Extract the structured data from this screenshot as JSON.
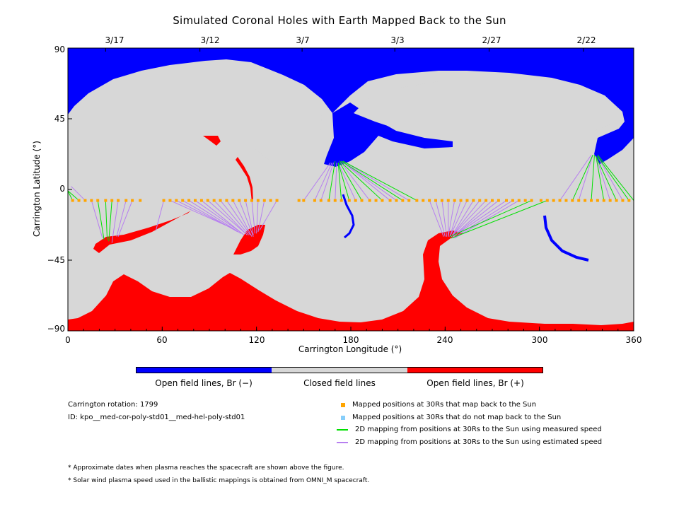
{
  "chart_data": {
    "type": "map",
    "title": "Simulated Coronal Holes with Earth Mapped Back to the Sun",
    "xlabel": "Carrington Longitude (°)",
    "ylabel": "Carrington Latitude (°)",
    "xlim": [
      0,
      360
    ],
    "ylim": [
      -90,
      90
    ],
    "x_ticks": [
      "0",
      "60",
      "120",
      "180",
      "240",
      "300",
      "360"
    ],
    "y_ticks": [
      "90",
      "45",
      "0",
      "−45",
      "−90"
    ],
    "date_ticks": [
      {
        "lon": 24,
        "label": "3/17"
      },
      {
        "lon": 84,
        "label": "3/12"
      },
      {
        "lon": 149,
        "label": "3/7"
      },
      {
        "lon": 208,
        "label": "3/3"
      },
      {
        "lon": 268,
        "label": "2/27"
      },
      {
        "lon": 328,
        "label": "2/22"
      }
    ],
    "spacecraft_latitude": -7,
    "mapped_positions_longitudes": [
      3,
      7,
      11,
      15,
      19,
      24,
      28,
      32,
      37,
      41,
      46,
      61,
      65,
      69,
      73,
      77,
      81,
      85,
      89,
      93,
      97,
      101,
      105,
      109,
      113,
      117,
      121,
      125,
      129,
      133,
      147,
      150,
      157,
      161,
      166,
      170,
      174,
      179,
      183,
      187,
      192,
      196,
      200,
      205,
      209,
      213,
      217,
      222,
      226,
      230,
      234,
      238,
      242,
      246,
      250,
      254,
      258,
      262,
      266,
      270,
      274,
      279,
      283,
      287,
      291,
      295,
      301,
      305,
      309,
      313,
      317,
      321,
      325,
      329,
      333,
      337,
      341,
      345,
      349,
      353,
      357
    ],
    "measured_speed_mappings": [
      {
        "from_lon": 3,
        "to": [
          -1,
          1
        ]
      },
      {
        "from_lon": 7,
        "to": [
          -1,
          0
        ]
      },
      {
        "from_lon": 19,
        "to": [
          23,
          -32
        ]
      },
      {
        "from_lon": 24,
        "to": [
          25,
          -32
        ]
      },
      {
        "from_lon": 28,
        "to": [
          26,
          -33
        ]
      },
      {
        "from_lon": 166,
        "to": [
          170,
          18
        ]
      },
      {
        "from_lon": 174,
        "to": [
          172,
          17
        ]
      },
      {
        "from_lon": 179,
        "to": [
          172,
          17
        ]
      },
      {
        "from_lon": 187,
        "to": [
          173,
          17
        ]
      },
      {
        "from_lon": 200,
        "to": [
          173,
          18
        ]
      },
      {
        "from_lon": 213,
        "to": [
          174,
          18
        ]
      },
      {
        "from_lon": 222,
        "to": [
          175,
          18
        ]
      },
      {
        "from_lon": 295,
        "to": [
          243,
          -30
        ]
      },
      {
        "from_lon": 305,
        "to": [
          244,
          -31
        ]
      },
      {
        "from_lon": 321,
        "to": [
          334,
          22
        ]
      },
      {
        "from_lon": 333,
        "to": [
          335,
          22
        ]
      },
      {
        "from_lon": 341,
        "to": [
          336,
          21
        ]
      },
      {
        "from_lon": 349,
        "to": [
          336,
          21
        ]
      },
      {
        "from_lon": 357,
        "to": [
          337,
          21
        ]
      },
      {
        "from_lon": 360,
        "to": [
          337,
          22
        ]
      }
    ],
    "estimated_speed_mappings": [
      {
        "from_lon": 11,
        "to": [
          2,
          2
        ]
      },
      {
        "from_lon": 15,
        "to": [
          22,
          -31
        ]
      },
      {
        "from_lon": 32,
        "to": [
          28,
          -34
        ]
      },
      {
        "from_lon": 37,
        "to": [
          31,
          -30
        ]
      },
      {
        "from_lon": 41,
        "to": [
          32,
          -30
        ]
      },
      {
        "from_lon": 61,
        "to": [
          56,
          -26
        ]
      },
      {
        "from_lon": 65,
        "to": [
          103,
          -24
        ]
      },
      {
        "from_lon": 69,
        "to": [
          107,
          -26
        ]
      },
      {
        "from_lon": 73,
        "to": [
          108,
          -27
        ]
      },
      {
        "from_lon": 77,
        "to": [
          110,
          -28
        ]
      },
      {
        "from_lon": 81,
        "to": [
          111,
          -28
        ]
      },
      {
        "from_lon": 85,
        "to": [
          112,
          -29
        ]
      },
      {
        "from_lon": 89,
        "to": [
          113,
          -28
        ]
      },
      {
        "from_lon": 93,
        "to": [
          114,
          -29
        ]
      },
      {
        "from_lon": 97,
        "to": [
          115,
          -29
        ]
      },
      {
        "from_lon": 101,
        "to": [
          116,
          -29
        ]
      },
      {
        "from_lon": 105,
        "to": [
          117,
          -30
        ]
      },
      {
        "from_lon": 109,
        "to": [
          118,
          -30
        ]
      },
      {
        "from_lon": 113,
        "to": [
          118,
          -29
        ]
      },
      {
        "from_lon": 117,
        "to": [
          119,
          -28
        ]
      },
      {
        "from_lon": 121,
        "to": [
          120,
          -28
        ]
      },
      {
        "from_lon": 125,
        "to": [
          121,
          -27
        ]
      },
      {
        "from_lon": 133,
        "to": [
          122,
          -26
        ]
      },
      {
        "from_lon": 150,
        "to": [
          167,
          17
        ]
      },
      {
        "from_lon": 157,
        "to": [
          168,
          17
        ]
      },
      {
        "from_lon": 161,
        "to": [
          169,
          17
        ]
      },
      {
        "from_lon": 170,
        "to": [
          171,
          17
        ]
      },
      {
        "from_lon": 183,
        "to": [
          172,
          17
        ]
      },
      {
        "from_lon": 192,
        "to": [
          173,
          18
        ]
      },
      {
        "from_lon": 205,
        "to": [
          174,
          18
        ]
      },
      {
        "from_lon": 209,
        "to": [
          174,
          18
        ]
      },
      {
        "from_lon": 217,
        "to": [
          175,
          18
        ]
      },
      {
        "from_lon": 230,
        "to": [
          239,
          -30
        ]
      },
      {
        "from_lon": 234,
        "to": [
          240,
          -30
        ]
      },
      {
        "from_lon": 238,
        "to": [
          241,
          -30
        ]
      },
      {
        "from_lon": 242,
        "to": [
          242,
          -30
        ]
      },
      {
        "from_lon": 246,
        "to": [
          242,
          -30
        ]
      },
      {
        "from_lon": 250,
        "to": [
          243,
          -30
        ]
      },
      {
        "from_lon": 254,
        "to": [
          243,
          -30
        ]
      },
      {
        "from_lon": 258,
        "to": [
          244,
          -30
        ]
      },
      {
        "from_lon": 262,
        "to": [
          244,
          -30
        ]
      },
      {
        "from_lon": 266,
        "to": [
          244,
          -30
        ]
      },
      {
        "from_lon": 270,
        "to": [
          245,
          -30
        ]
      },
      {
        "from_lon": 274,
        "to": [
          245,
          -30
        ]
      },
      {
        "from_lon": 279,
        "to": [
          245,
          -30
        ]
      },
      {
        "from_lon": 283,
        "to": [
          245,
          -31
        ]
      },
      {
        "from_lon": 287,
        "to": [
          246,
          -31
        ]
      },
      {
        "from_lon": 313,
        "to": [
          333,
          22
        ]
      },
      {
        "from_lon": 325,
        "to": [
          334,
          22
        ]
      },
      {
        "from_lon": 345,
        "to": [
          336,
          21
        ]
      },
      {
        "from_lon": 353,
        "to": [
          337,
          21
        ]
      }
    ],
    "region_colors": {
      "open_negative": "#0000ff",
      "closed": "#d7d7d7",
      "open_positive": "#ff0000",
      "mapped_marker": "#ffa500",
      "unmapped_marker": "#87cefa",
      "measured_line": "#00e000",
      "estimated_line": "#b77ff0"
    }
  },
  "colorbar": {
    "labels": [
      "Open field lines, Br (−)",
      "Closed field lines",
      "Open field lines, Br (+)"
    ],
    "colors": [
      "#0000ff",
      "#d7d7d7",
      "#ff0000"
    ]
  },
  "info": {
    "rotation": "Carrington rotation: 1799",
    "id": "ID: kpo__med-cor-poly-std01__med-hel-poly-std01"
  },
  "legend": [
    {
      "label": "Mapped positions at 30Rs that map back to the Sun",
      "kind": "square",
      "color": "#ffa500"
    },
    {
      "label": "Mapped positions at 30Rs that do not map back to the Sun",
      "kind": "square",
      "color": "#87cefa"
    },
    {
      "label": "2D mapping from positions at 30Rs to the Sun using measured speed",
      "kind": "line",
      "color": "#00e000"
    },
    {
      "label": "2D mapping from positions at 30Rs to the Sun using estimated speed",
      "kind": "line",
      "color": "#b77ff0"
    }
  ],
  "notes": [
    "* Approximate dates when plasma reaches the spacecraft are shown above the figure.",
    "* Solar wind plasma speed used in the ballistic mappings is obtained from OMNI_M spacecraft."
  ]
}
